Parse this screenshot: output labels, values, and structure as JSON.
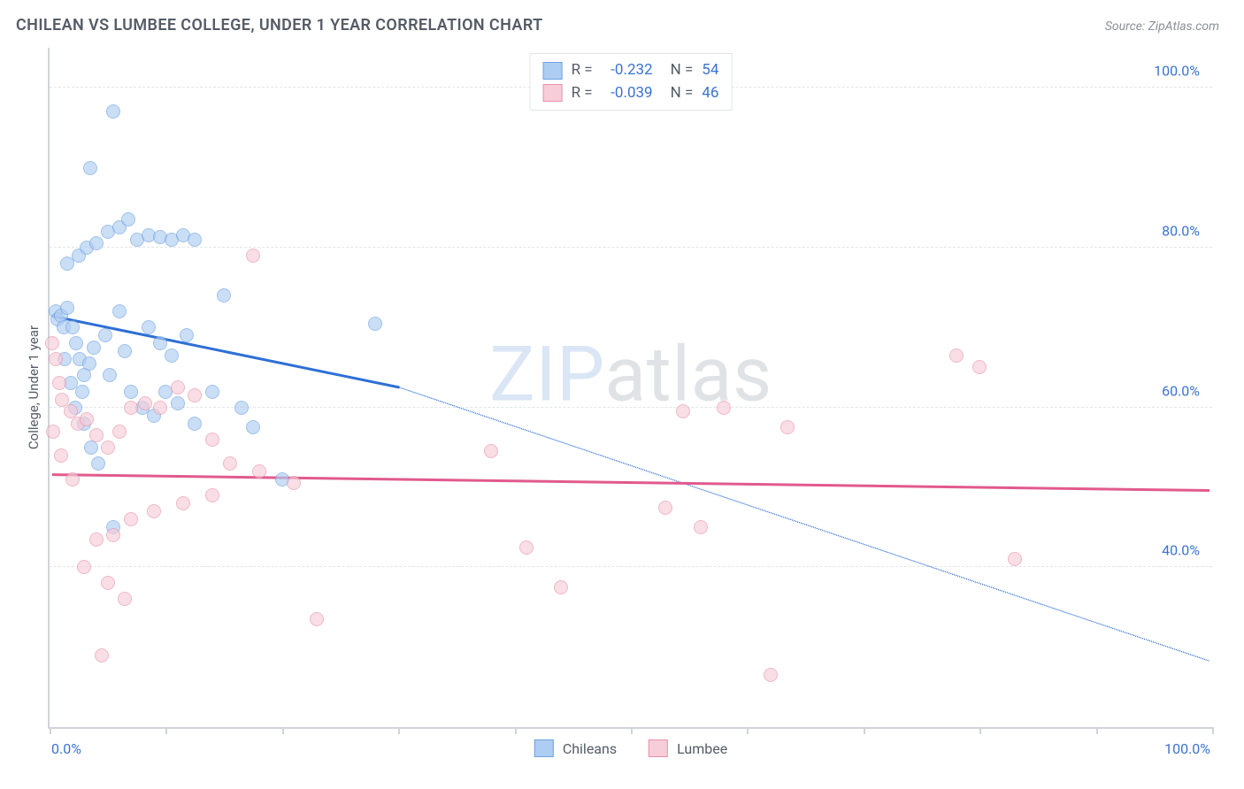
{
  "title": "CHILEAN VS LUMBEE COLLEGE, UNDER 1 YEAR CORRELATION CHART",
  "source": "Source: ZipAtlas.com",
  "watermark_a": "ZIP",
  "watermark_b": "atlas",
  "chart": {
    "type": "scatter",
    "y_axis_title": "College, Under 1 year",
    "xlim": [
      0,
      100
    ],
    "ylim": [
      20,
      105
    ],
    "y_ticks": [
      40,
      60,
      80,
      100
    ],
    "y_tick_labels": [
      "40.0%",
      "60.0%",
      "80.0%",
      "100.0%"
    ],
    "x_ticks": [
      0,
      10,
      20,
      30,
      40,
      50,
      60,
      70,
      80,
      90,
      100
    ],
    "x_axis_labels": {
      "start": "0.0%",
      "end": "100.0%"
    },
    "grid_color": "#e2e5e9",
    "axis_color": "#cfd4da",
    "tick_label_color": "#3a73d1",
    "background": "#ffffff",
    "point_radius": 8,
    "point_opacity": 0.65,
    "series": [
      {
        "name": "Chileans",
        "r_label": "-0.232",
        "n_label": "54",
        "fill": "#aecdf2",
        "stroke": "#6ea2e0",
        "line_color": "#2e6fd6",
        "trend_solid": {
          "x1": 0,
          "y1": 71.5,
          "x2": 30,
          "y2": 62.5
        },
        "trend_dashed": {
          "x1": 30,
          "y1": 62.5,
          "x2": 100,
          "y2": 28
        },
        "points": [
          [
            0.5,
            72
          ],
          [
            0.7,
            71
          ],
          [
            1.0,
            71.5
          ],
          [
            1.2,
            70
          ],
          [
            1.5,
            72.5
          ],
          [
            2.0,
            70
          ],
          [
            2.3,
            68
          ],
          [
            2.6,
            66
          ],
          [
            3.0,
            64
          ],
          [
            3.4,
            65.5
          ],
          [
            1.5,
            78
          ],
          [
            2.5,
            79
          ],
          [
            3.2,
            80
          ],
          [
            4.0,
            80.5
          ],
          [
            5.0,
            82
          ],
          [
            6.0,
            82.5
          ],
          [
            6.8,
            83.5
          ],
          [
            7.5,
            81
          ],
          [
            8.5,
            81.5
          ],
          [
            9.5,
            81.3
          ],
          [
            10.5,
            81
          ],
          [
            11.5,
            81.5
          ],
          [
            12.5,
            81
          ],
          [
            3.5,
            90
          ],
          [
            5.5,
            97
          ],
          [
            1.8,
            63
          ],
          [
            2.2,
            60
          ],
          [
            3.0,
            58
          ],
          [
            3.6,
            55
          ],
          [
            4.2,
            53
          ],
          [
            5.5,
            45
          ],
          [
            7.0,
            62
          ],
          [
            8.0,
            60
          ],
          [
            9.0,
            59
          ],
          [
            10.0,
            62
          ],
          [
            11.0,
            60.5
          ],
          [
            12.5,
            58
          ],
          [
            14.0,
            62
          ],
          [
            15.0,
            74
          ],
          [
            16.5,
            60
          ],
          [
            17.5,
            57.5
          ],
          [
            20.0,
            51
          ],
          [
            8.5,
            70
          ],
          [
            9.5,
            68
          ],
          [
            10.5,
            66.5
          ],
          [
            11.8,
            69
          ],
          [
            6.5,
            67
          ],
          [
            4.8,
            69
          ],
          [
            3.8,
            67.5
          ],
          [
            2.8,
            62
          ],
          [
            1.3,
            66
          ],
          [
            28.0,
            70.5
          ],
          [
            6.0,
            72
          ],
          [
            5.2,
            64
          ]
        ]
      },
      {
        "name": "Lumbee",
        "r_label": "-0.039",
        "n_label": "46",
        "fill": "#f6cdd8",
        "stroke": "#e992ac",
        "line_color": "#e15a8d",
        "trend_solid": {
          "x1": 0,
          "y1": 51.5,
          "x2": 100,
          "y2": 49.5
        },
        "trend_dashed": null,
        "points": [
          [
            0.2,
            68
          ],
          [
            0.5,
            66
          ],
          [
            0.8,
            63
          ],
          [
            1.1,
            61
          ],
          [
            1.8,
            59.5
          ],
          [
            2.4,
            58
          ],
          [
            3.2,
            58.5
          ],
          [
            4.0,
            56.5
          ],
          [
            5.0,
            55
          ],
          [
            6.0,
            57
          ],
          [
            7.0,
            60
          ],
          [
            8.2,
            60.5
          ],
          [
            9.5,
            60
          ],
          [
            11.0,
            62.5
          ],
          [
            12.5,
            61.5
          ],
          [
            14.0,
            56
          ],
          [
            15.5,
            53
          ],
          [
            17.5,
            79
          ],
          [
            14.0,
            49
          ],
          [
            11.5,
            48
          ],
          [
            9.0,
            47
          ],
          [
            7.0,
            46
          ],
          [
            5.5,
            44
          ],
          [
            4.0,
            43.5
          ],
          [
            3.0,
            40
          ],
          [
            5.0,
            38
          ],
          [
            6.5,
            36
          ],
          [
            4.5,
            29
          ],
          [
            18.0,
            52
          ],
          [
            21.0,
            50.5
          ],
          [
            23.0,
            33.5
          ],
          [
            38.0,
            54.5
          ],
          [
            41.0,
            42.5
          ],
          [
            44.0,
            37.5
          ],
          [
            53.0,
            47.5
          ],
          [
            54.5,
            59.5
          ],
          [
            56.0,
            45
          ],
          [
            62.0,
            26.5
          ],
          [
            63.5,
            57.5
          ],
          [
            58.0,
            60
          ],
          [
            80.0,
            65
          ],
          [
            83.0,
            41
          ],
          [
            78.0,
            66.5
          ],
          [
            0.3,
            57
          ],
          [
            1.0,
            54
          ],
          [
            2.0,
            51
          ]
        ]
      }
    ],
    "correlation_box": {
      "r_prefix": "R =",
      "n_prefix": "N ="
    },
    "bottom_legend": [
      "Chileans",
      "Lumbee"
    ]
  }
}
